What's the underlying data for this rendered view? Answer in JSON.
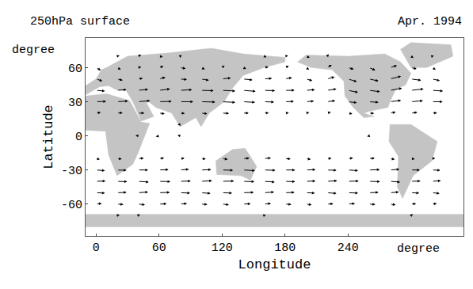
{
  "chart_data": {
    "type": "vector",
    "title": "250hPa surface",
    "subtitle": "Apr. 1994",
    "x_label": "Longitude",
    "y_label": "Latitude",
    "x_unit": "degree",
    "y_unit": "degree",
    "xlim": [
      -10,
      350
    ],
    "ylim": [
      -88,
      86
    ],
    "xticks": [
      0,
      60,
      120,
      180,
      240
    ],
    "yticks": [
      -60,
      -30,
      0,
      30,
      60
    ],
    "grid": false,
    "color": "#000000",
    "x": [
      0,
      20,
      40,
      60,
      80,
      100,
      120,
      140,
      160,
      180,
      200,
      220,
      240,
      260,
      280,
      300,
      320
    ],
    "y": [
      70,
      60,
      50,
      40,
      30,
      20,
      10,
      0,
      -10,
      -20,
      -30,
      -40,
      -50,
      -60,
      -70
    ],
    "u": [
      [
        5,
        8,
        10,
        12,
        6,
        3,
        -2,
        4,
        8,
        10,
        12,
        6,
        2,
        -3,
        5,
        8,
        6
      ],
      [
        15,
        12,
        10,
        14,
        18,
        12,
        8,
        10,
        14,
        12,
        10,
        15,
        18,
        20,
        22,
        18,
        12
      ],
      [
        20,
        18,
        15,
        20,
        22,
        25,
        28,
        30,
        25,
        22,
        20,
        24,
        28,
        30,
        35,
        32,
        25
      ],
      [
        28,
        30,
        32,
        35,
        38,
        40,
        42,
        40,
        35,
        30,
        28,
        30,
        32,
        35,
        38,
        40,
        35
      ],
      [
        32,
        35,
        38,
        40,
        42,
        45,
        42,
        38,
        32,
        28,
        25,
        26,
        28,
        30,
        35,
        38,
        34
      ],
      [
        15,
        18,
        20,
        18,
        15,
        20,
        22,
        18,
        15,
        12,
        10,
        12,
        14,
        16,
        18,
        20,
        16
      ],
      [
        2,
        -3,
        -5,
        -6,
        -8,
        -4,
        2,
        3,
        -2,
        -3,
        2,
        4,
        -3,
        -5,
        3,
        5,
        3
      ],
      [
        -4,
        -6,
        -8,
        -10,
        -8,
        -5,
        -2,
        1,
        -3,
        -4,
        2,
        3,
        -2,
        -6,
        -3,
        2,
        -2
      ],
      [
        3,
        2,
        -3,
        -5,
        -6,
        -3,
        2,
        4,
        5,
        3,
        4,
        5,
        2,
        -2,
        3,
        4,
        2
      ],
      [
        12,
        15,
        18,
        16,
        14,
        15,
        18,
        20,
        22,
        18,
        15,
        14,
        16,
        18,
        15,
        12,
        10
      ],
      [
        28,
        30,
        32,
        30,
        28,
        32,
        35,
        38,
        36,
        32,
        30,
        30,
        32,
        34,
        30,
        28,
        26
      ],
      [
        30,
        32,
        34,
        36,
        34,
        35,
        38,
        36,
        34,
        32,
        30,
        32,
        34,
        35,
        32,
        30,
        28
      ],
      [
        28,
        30,
        32,
        34,
        32,
        30,
        32,
        34,
        32,
        30,
        28,
        30,
        32,
        30,
        28,
        26,
        24
      ],
      [
        18,
        20,
        22,
        24,
        22,
        20,
        22,
        24,
        22,
        20,
        18,
        20,
        22,
        20,
        18,
        16,
        15
      ],
      [
        5,
        8,
        6,
        4,
        -2,
        -4,
        3,
        5,
        6,
        4,
        2,
        -3,
        -5,
        2,
        4,
        6,
        3
      ]
    ],
    "v": [
      [
        -3,
        2,
        4,
        -2,
        3,
        -4,
        2,
        5,
        -3,
        2,
        -4,
        6,
        3,
        -2,
        4,
        -5,
        2
      ],
      [
        -8,
        -6,
        2,
        4,
        -3,
        -5,
        6,
        -4,
        2,
        5,
        -6,
        8,
        -5,
        -8,
        6,
        -4,
        -6
      ],
      [
        -6,
        -4,
        2,
        5,
        -2,
        -4,
        3,
        -3,
        2,
        4,
        -5,
        6,
        -8,
        -6,
        8,
        -4,
        -5
      ],
      [
        -2,
        2,
        3,
        4,
        2,
        -1,
        -2,
        -3,
        -1,
        0,
        2,
        4,
        -6,
        -4,
        6,
        4,
        -2
      ],
      [
        1,
        2,
        3,
        1,
        0,
        -1,
        -2,
        -2,
        -1,
        1,
        2,
        3,
        -3,
        -2,
        4,
        3,
        0
      ],
      [
        2,
        1,
        0,
        -2,
        -1,
        -2,
        -1,
        0,
        1,
        1,
        2,
        3,
        -2,
        -1,
        3,
        2,
        1
      ],
      [
        1,
        -1,
        -2,
        -1,
        0,
        2,
        1,
        -2,
        1,
        2,
        -1,
        1,
        2,
        -1,
        2,
        3,
        -1
      ],
      [
        2,
        -1,
        1,
        -2,
        2,
        1,
        -1,
        2,
        -2,
        1,
        2,
        -1,
        1,
        -2,
        3,
        -1,
        1
      ],
      [
        -1,
        2,
        1,
        -2,
        -1,
        2,
        1,
        -1,
        2,
        -2,
        1,
        2,
        -1,
        1,
        -2,
        1,
        -1
      ],
      [
        -2,
        -1,
        1,
        2,
        1,
        -1,
        -2,
        1,
        2,
        -1,
        -2,
        1,
        2,
        1,
        -2,
        -1,
        1
      ],
      [
        -2,
        -1,
        0,
        1,
        2,
        1,
        -1,
        -2,
        -1,
        0,
        1,
        -1,
        -2,
        1,
        2,
        0,
        -1
      ],
      [
        1,
        -1,
        -2,
        -1,
        1,
        2,
        1,
        -1,
        -2,
        -1,
        1,
        2,
        1,
        -1,
        -2,
        1,
        2
      ],
      [
        -1,
        1,
        2,
        1,
        -1,
        -2,
        -1,
        1,
        2,
        1,
        -1,
        -2,
        -1,
        1,
        2,
        -1,
        -2
      ],
      [
        2,
        -1,
        -2,
        1,
        2,
        -1,
        -2,
        1,
        2,
        -1,
        -2,
        1,
        2,
        -1,
        -2,
        1,
        2
      ],
      [
        -3,
        2,
        4,
        -2,
        3,
        -4,
        2,
        -3,
        2,
        4,
        -2,
        3,
        -4,
        2,
        -3,
        4,
        -2
      ]
    ],
    "land": [
      [
        [
          -10,
          35
        ],
        [
          10,
          37
        ],
        [
          32,
          31
        ],
        [
          43,
          12
        ],
        [
          51,
          11
        ],
        [
          40,
          -15
        ],
        [
          35,
          -25
        ],
        [
          20,
          -35
        ],
        [
          12,
          -17
        ],
        [
          9,
          4
        ],
        [
          -10,
          5
        ],
        [
          -17,
          15
        ],
        [
          -10,
          35
        ]
      ],
      [
        [
          -10,
          36
        ],
        [
          -10,
          44
        ],
        [
          0,
          50
        ],
        [
          5,
          58
        ],
        [
          10,
          60
        ],
        [
          30,
          70
        ],
        [
          70,
          73
        ],
        [
          110,
          77
        ],
        [
          140,
          72
        ],
        [
          180,
          69
        ],
        [
          180,
          65
        ],
        [
          160,
          60
        ],
        [
          140,
          53
        ],
        [
          130,
          42
        ],
        [
          122,
          30
        ],
        [
          108,
          20
        ],
        [
          100,
          8
        ],
        [
          95,
          16
        ],
        [
          80,
          8
        ],
        [
          72,
          20
        ],
        [
          57,
          25
        ],
        [
          50,
          30
        ],
        [
          48,
          29
        ],
        [
          55,
          17
        ],
        [
          43,
          13
        ],
        [
          35,
          30
        ],
        [
          28,
          41
        ],
        [
          20,
          40
        ],
        [
          12,
          44
        ],
        [
          3,
          43
        ],
        [
          -10,
          36
        ]
      ],
      [
        [
          114,
          -22
        ],
        [
          130,
          -12
        ],
        [
          142,
          -11
        ],
        [
          153,
          -27
        ],
        [
          147,
          -39
        ],
        [
          138,
          -35
        ],
        [
          115,
          -34
        ],
        [
          114,
          -22
        ]
      ],
      [
        [
          192,
          65
        ],
        [
          200,
          71
        ],
        [
          240,
          70
        ],
        [
          275,
          72
        ],
        [
          290,
          65
        ],
        [
          300,
          55
        ],
        [
          295,
          45
        ],
        [
          285,
          40
        ],
        [
          280,
          30
        ],
        [
          278,
          25
        ],
        [
          262,
          22
        ],
        [
          255,
          20
        ],
        [
          265,
          17
        ],
        [
          255,
          16
        ],
        [
          245,
          25
        ],
        [
          237,
          35
        ],
        [
          236,
          48
        ],
        [
          225,
          58
        ],
        [
          205,
          60
        ],
        [
          192,
          65
        ]
      ],
      [
        [
          300,
          60
        ],
        [
          315,
          60
        ],
        [
          340,
          70
        ],
        [
          338,
          80
        ],
        [
          300,
          82
        ],
        [
          290,
          76
        ],
        [
          300,
          60
        ]
      ],
      [
        [
          280,
          10
        ],
        [
          300,
          10
        ],
        [
          325,
          -5
        ],
        [
          320,
          -22
        ],
        [
          302,
          -35
        ],
        [
          292,
          -55
        ],
        [
          287,
          -45
        ],
        [
          288,
          -18
        ],
        [
          279,
          -5
        ],
        [
          280,
          10
        ]
      ],
      [
        [
          -10,
          -69
        ],
        [
          350,
          -69
        ],
        [
          350,
          -80
        ],
        [
          -10,
          -80
        ],
        [
          -10,
          -69
        ]
      ]
    ]
  }
}
